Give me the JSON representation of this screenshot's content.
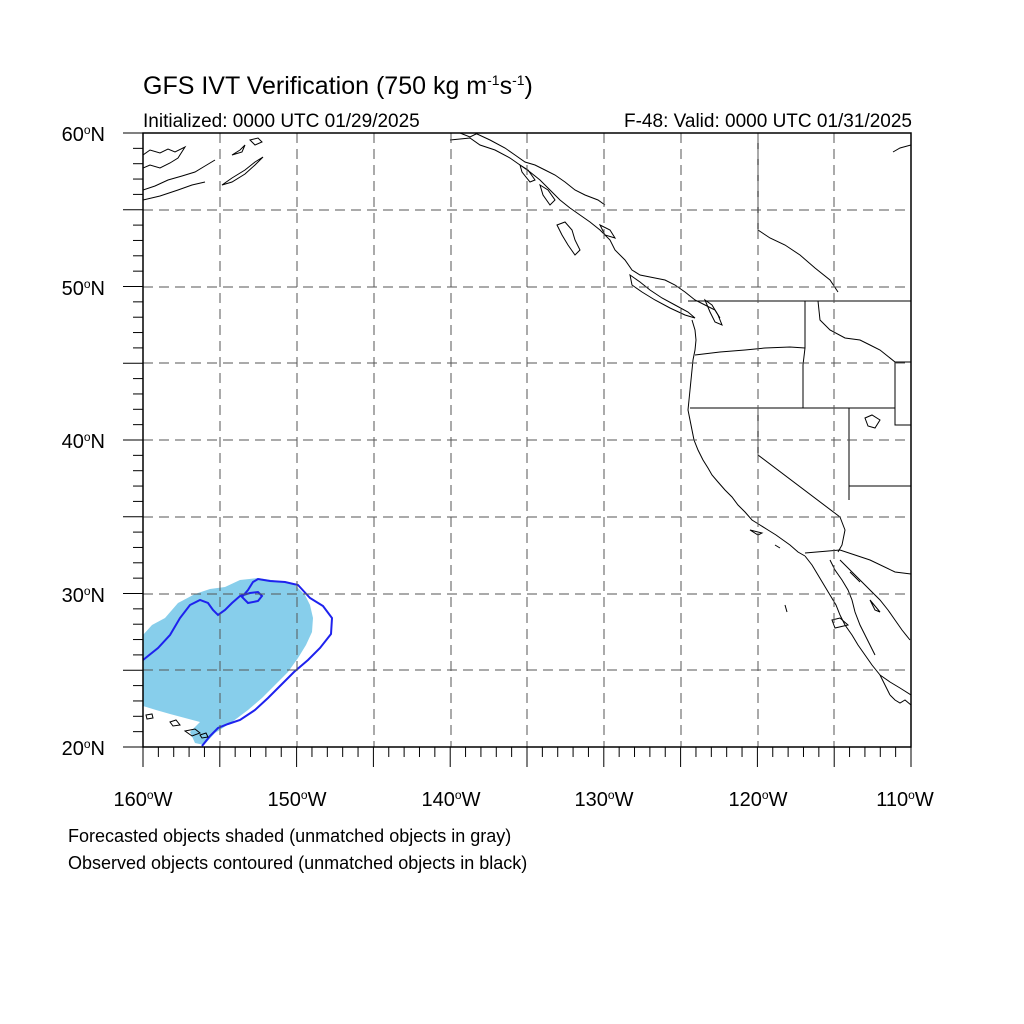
{
  "title": {
    "main": "GFS IVT Verification (750 kg m",
    "exp1": "-1",
    "mid": "s",
    "exp2": "-1",
    "end": ")"
  },
  "initialized": "Initialized: 0000 UTC 01/29/2025",
  "valid": "F-48: Valid: 0000 UTC 01/31/2025",
  "lat_labels": [
    {
      "deg": "60",
      "unit": "N"
    },
    {
      "deg": "50",
      "unit": "N"
    },
    {
      "deg": "40",
      "unit": "N"
    },
    {
      "deg": "30",
      "unit": "N"
    },
    {
      "deg": "20",
      "unit": "N"
    }
  ],
  "lon_labels": [
    {
      "deg": "160",
      "unit": "W"
    },
    {
      "deg": "150",
      "unit": "W"
    },
    {
      "deg": "140",
      "unit": "W"
    },
    {
      "deg": "130",
      "unit": "W"
    },
    {
      "deg": "120",
      "unit": "W"
    },
    {
      "deg": "110",
      "unit": "W"
    }
  ],
  "footer": {
    "line1": "Forecasted objects shaded (unmatched objects in gray)",
    "line2": "Observed objects contoured (unmatched objects in black)"
  },
  "colors": {
    "forecast_shade": "#87ceeb",
    "observed_contour": "#1e22ee",
    "coast": "#000000",
    "grid": "#555555"
  },
  "map_extent": {
    "lon_min": -160,
    "lon_max": -110,
    "lat_min": 20,
    "lat_max": 60
  },
  "grid_lons": [
    -155,
    -150,
    -145,
    -140,
    -135,
    -130,
    -125,
    -120,
    -115
  ],
  "grid_lats": [
    25,
    30,
    35,
    40,
    45,
    50,
    55
  ]
}
